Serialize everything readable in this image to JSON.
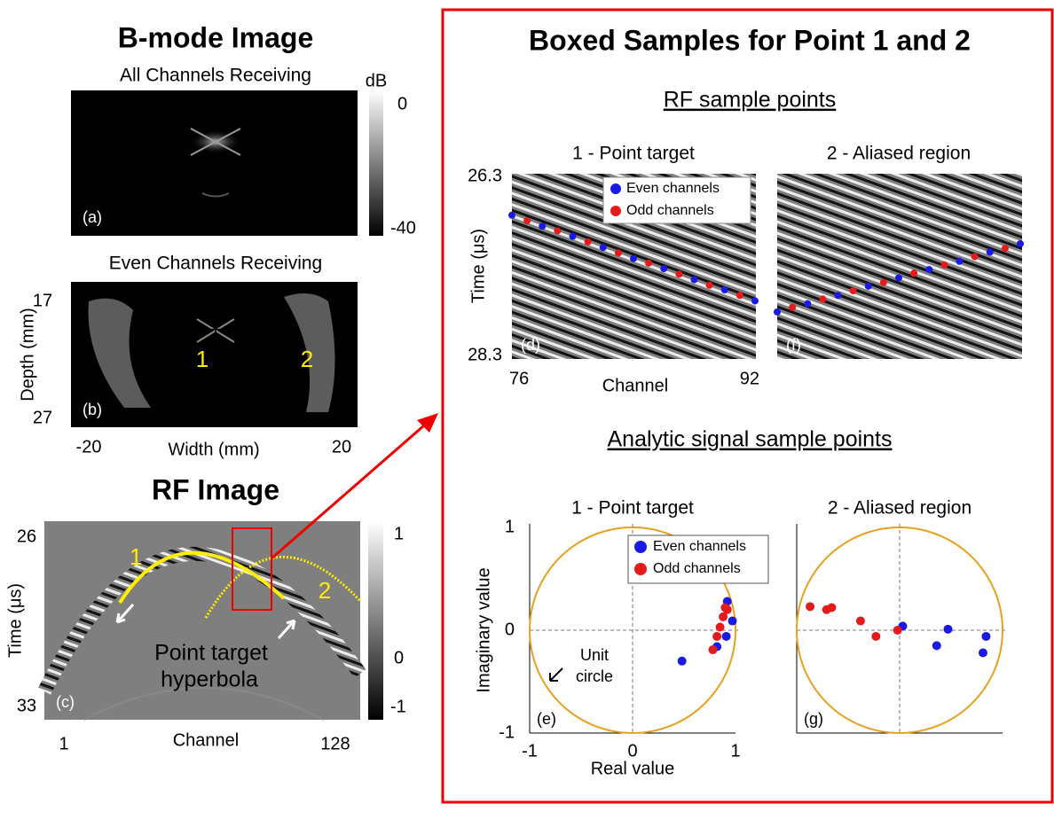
{
  "bmode": {
    "title": "B-mode Image",
    "subtitle_a": "All Channels Receiving",
    "subtitle_b": "Even Channels Receiving",
    "colorbar_label": "dB",
    "colorbar_ticks": [
      0,
      -40
    ],
    "panel_a": "(a)",
    "panel_b": "(b)",
    "depth_label": "Depth (mm)",
    "depth_ticks": [
      17,
      27
    ],
    "width_label": "Width (mm)",
    "width_ticks": [
      -20,
      20
    ],
    "markers": [
      "1",
      "2"
    ]
  },
  "rf_image": {
    "title": "RF Image",
    "time_label": "Time (μs)",
    "time_ticks": [
      26,
      33
    ],
    "channel_label": "Channel",
    "channel_ticks": [
      1,
      128
    ],
    "colorbar_ticks": [
      1,
      0,
      -1
    ],
    "panel": "(c)",
    "curve_labels": [
      "1",
      "2"
    ],
    "annotation": [
      "Point target",
      "hyperbola"
    ]
  },
  "boxed": {
    "title": "Boxed Samples for Point 1 and 2",
    "rf_samples": {
      "title": "RF sample points",
      "ylabel": "Time (μs)",
      "ylim": [
        26.3,
        28.3
      ],
      "yticks": [
        26.3,
        28.3
      ],
      "xlabel": "Channel",
      "xlim": [
        76,
        92
      ],
      "xticks": [
        76,
        92
      ],
      "panels": [
        {
          "title": "1 - Point target",
          "label": "(d)",
          "series": [
            {
              "name": "Even channels",
              "color": "#1a1ae6",
              "x": [
                76,
                78,
                80,
                82,
                84,
                86,
                88,
                90,
                92
              ],
              "values": [
                26.74,
                26.86,
                26.97,
                27.09,
                27.21,
                27.32,
                27.44,
                27.55,
                27.67
              ]
            },
            {
              "name": "Odd channels",
              "color": "#e61a1a",
              "x": [
                77,
                79,
                81,
                83,
                85,
                87,
                89,
                91
              ],
              "values": [
                26.8,
                26.91,
                27.03,
                27.15,
                27.26,
                27.38,
                27.5,
                27.61
              ]
            }
          ]
        },
        {
          "title": "2 - Aliased region",
          "label": "(f)",
          "series": [
            {
              "color": "#1a1ae6",
              "x": [
                76,
                78,
                80,
                82,
                84,
                86,
                88,
                90,
                92
              ],
              "values": [
                27.79,
                27.7,
                27.61,
                27.51,
                27.42,
                27.33,
                27.24,
                27.14,
                27.05
              ]
            },
            {
              "color": "#e61a1a",
              "x": [
                77,
                79,
                81,
                83,
                85,
                87,
                89,
                91
              ],
              "values": [
                27.74,
                27.65,
                27.56,
                27.47,
                27.37,
                27.28,
                27.19,
                27.1
              ]
            }
          ]
        }
      ]
    },
    "analytic": {
      "title": "Analytic signal sample points",
      "xlabel": "Real value",
      "ylabel": "Imaginary value",
      "xlim": [
        -1,
        1
      ],
      "ylim": [
        -1,
        1
      ],
      "xticks": [
        -1,
        0,
        1
      ],
      "yticks": [
        -1,
        0,
        1
      ],
      "annotation": [
        "Unit",
        "circle"
      ],
      "panels": [
        {
          "title": "1 - Point target",
          "label": "(e)",
          "series": [
            {
              "name": "Even channels",
              "color": "#1a1ae6",
              "x": [
                0.92,
                0.97,
                0.91,
                0.82,
                0.48
              ],
              "values": [
                0.28,
                0.09,
                -0.06,
                -0.16,
                -0.3
              ]
            },
            {
              "name": "Odd channels",
              "color": "#e61a1a",
              "x": [
                0.92,
                0.9,
                0.88,
                0.85,
                0.82,
                0.78
              ],
              "values": [
                0.2,
                0.22,
                0.13,
                0.03,
                -0.06,
                -0.19
              ]
            }
          ]
        },
        {
          "title": "2 - Aliased region",
          "label": "(g)",
          "series": [
            {
              "color": "#1a1ae6",
              "x": [
                0.03,
                0.47,
                0.36,
                0.84,
                0.81
              ],
              "values": [
                0.04,
                0.01,
                -0.15,
                -0.06,
                -0.22
              ]
            },
            {
              "color": "#e61a1a",
              "x": [
                -0.87,
                -0.71,
                -0.66,
                -0.38,
                -0.23,
                -0.02
              ],
              "values": [
                0.23,
                0.2,
                0.22,
                0.09,
                -0.06,
                0.0
              ]
            }
          ]
        }
      ]
    }
  }
}
